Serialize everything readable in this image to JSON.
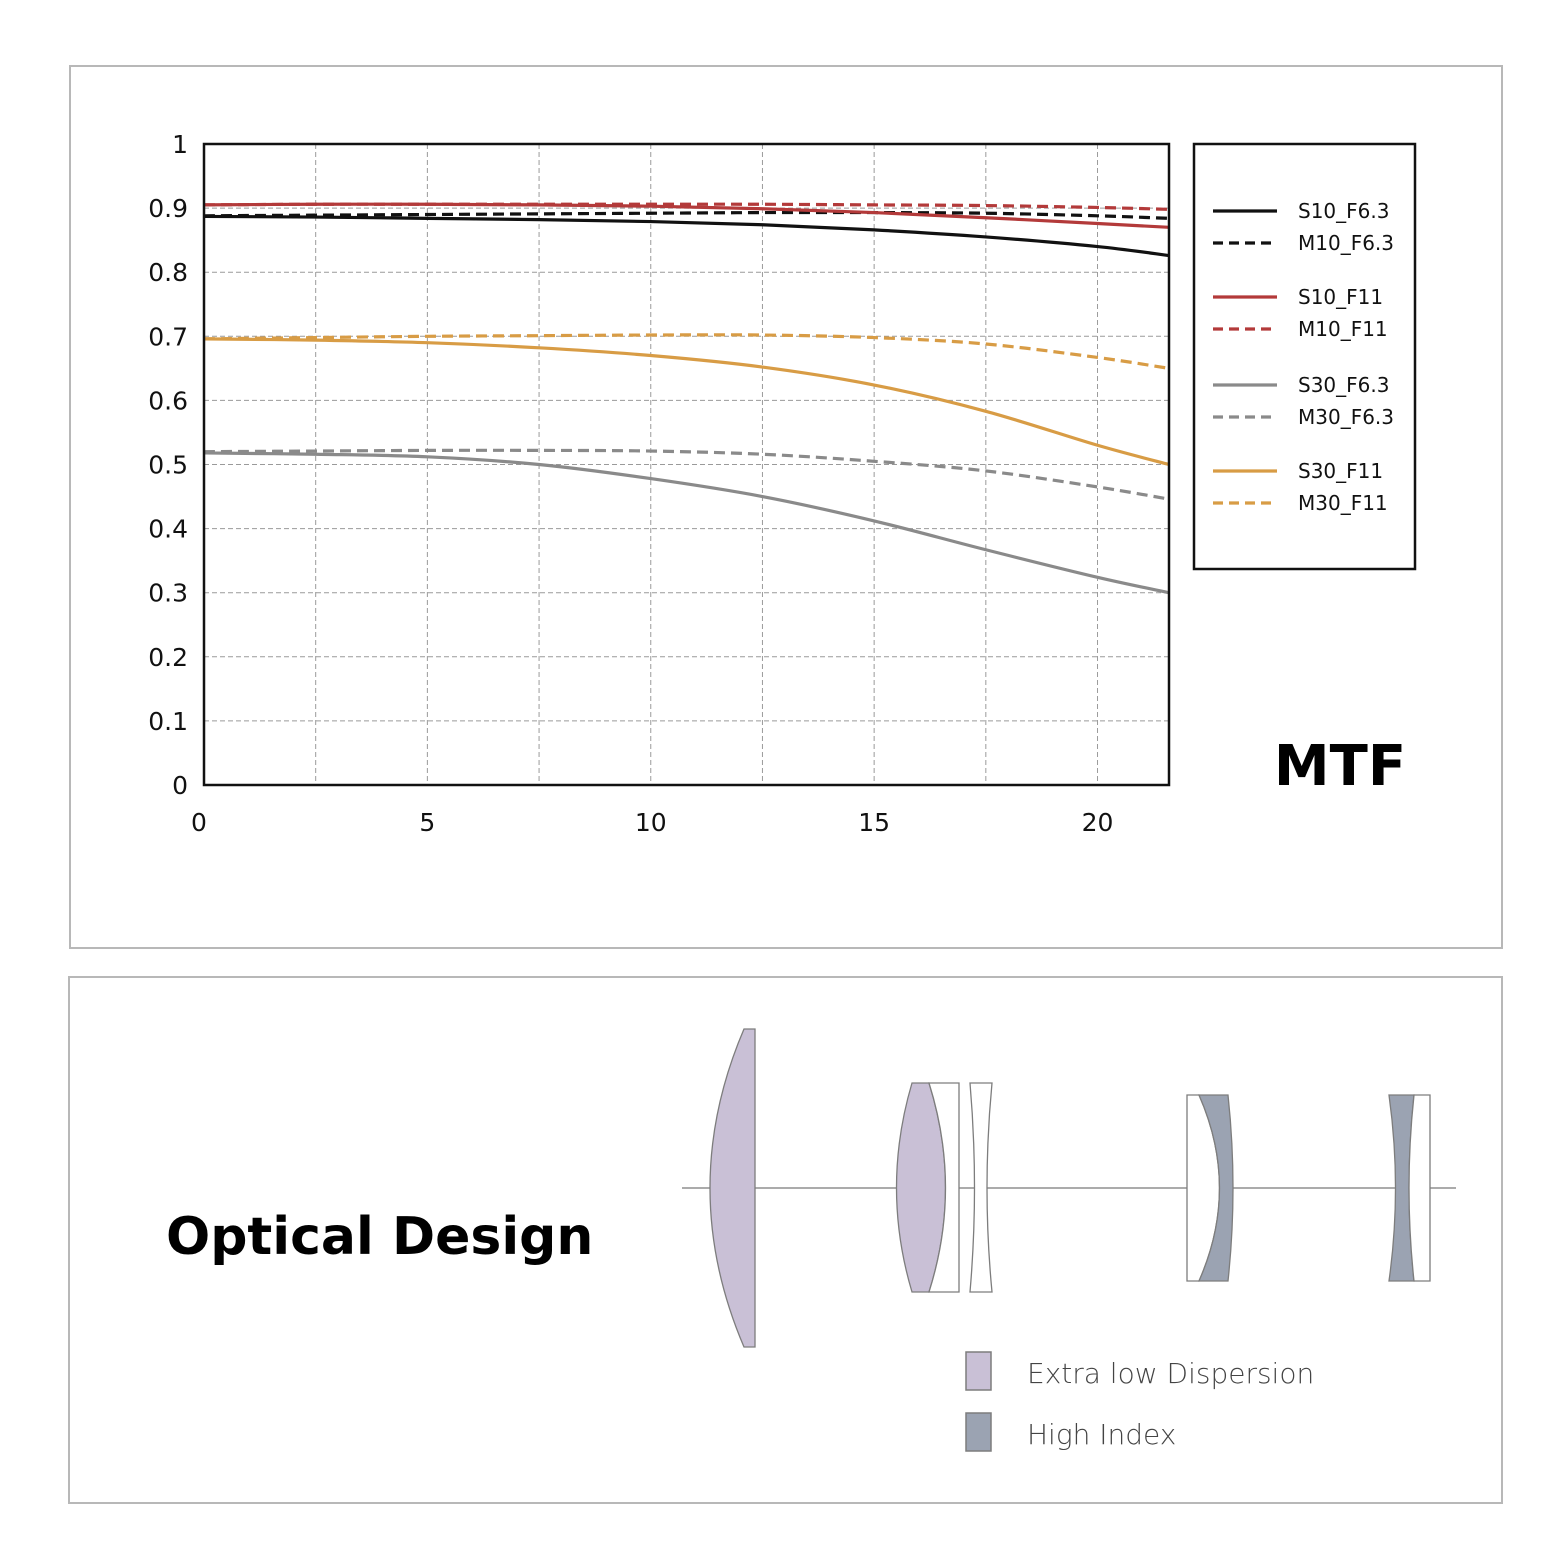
{
  "chart_data": {
    "type": "line",
    "title": "MTF",
    "xlabel": "",
    "ylabel": "",
    "xlim": [
      0,
      21.6
    ],
    "ylim": [
      0,
      1
    ],
    "xticks": [
      "0",
      "5",
      "10",
      "15",
      "20"
    ],
    "yticks": [
      "0",
      "0.1",
      "0.2",
      "0.3",
      "0.4",
      "0.5",
      "0.6",
      "0.7",
      "0.8",
      "0.9",
      "1"
    ],
    "grid": true,
    "legend_position": "right",
    "x": [
      0,
      2.5,
      5,
      7.5,
      10,
      12.5,
      15,
      17.5,
      20,
      21.6
    ],
    "series": [
      {
        "name": "S10_F6.3",
        "color": "#111111",
        "dash": "solid",
        "values": [
          0.887,
          0.886,
          0.884,
          0.882,
          0.879,
          0.874,
          0.866,
          0.855,
          0.84,
          0.826
        ]
      },
      {
        "name": "M10_F6.3",
        "color": "#111111",
        "dash": "dashed",
        "values": [
          0.888,
          0.889,
          0.89,
          0.891,
          0.892,
          0.893,
          0.893,
          0.892,
          0.888,
          0.884
        ]
      },
      {
        "name": "S10_F11",
        "color": "#b33a3a",
        "dash": "solid",
        "values": [
          0.905,
          0.906,
          0.906,
          0.905,
          0.903,
          0.899,
          0.893,
          0.885,
          0.876,
          0.87
        ]
      },
      {
        "name": "M10_F11",
        "color": "#b33a3a",
        "dash": "dashed",
        "values": [
          0.905,
          0.906,
          0.906,
          0.906,
          0.906,
          0.906,
          0.905,
          0.904,
          0.901,
          0.898
        ]
      },
      {
        "name": "S30_F6.3",
        "color": "#8a8a8a",
        "dash": "solid",
        "values": [
          0.518,
          0.516,
          0.512,
          0.5,
          0.478,
          0.45,
          0.412,
          0.367,
          0.324,
          0.3
        ]
      },
      {
        "name": "M30_F6.3",
        "color": "#8a8a8a",
        "dash": "dashed",
        "values": [
          0.52,
          0.521,
          0.522,
          0.522,
          0.521,
          0.516,
          0.505,
          0.49,
          0.465,
          0.446
        ]
      },
      {
        "name": "S30_F11",
        "color": "#d89c45",
        "dash": "solid",
        "values": [
          0.696,
          0.694,
          0.69,
          0.682,
          0.67,
          0.652,
          0.624,
          0.583,
          0.53,
          0.5
        ]
      },
      {
        "name": "M30_F11",
        "color": "#d89c45",
        "dash": "dashed",
        "values": [
          0.696,
          0.698,
          0.7,
          0.701,
          0.702,
          0.702,
          0.698,
          0.688,
          0.667,
          0.65
        ]
      }
    ]
  },
  "optical": {
    "title": "Optical Design",
    "legend": [
      {
        "label": "Extra low Dispersion",
        "color": "#c9c0d6"
      },
      {
        "label": "High Index",
        "color": "#9ba3b2"
      }
    ]
  }
}
